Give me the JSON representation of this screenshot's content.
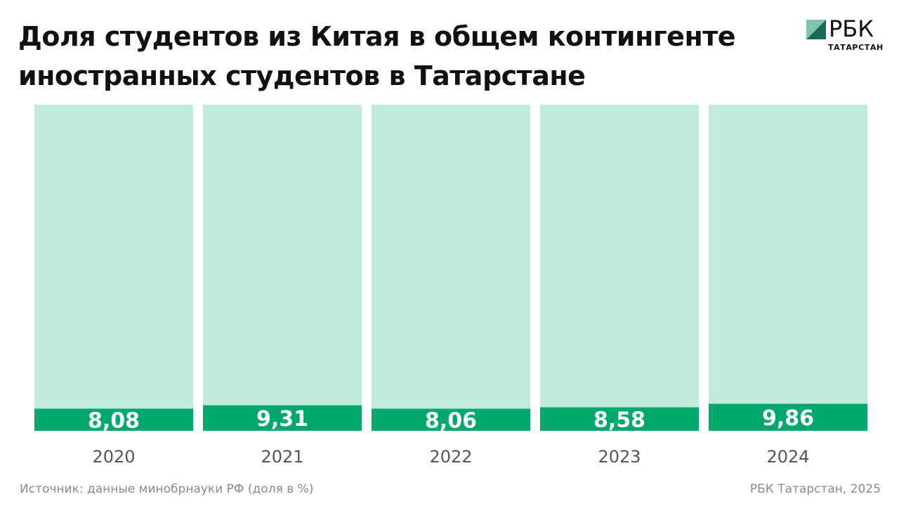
{
  "title_lines": [
    "Доля студентов из Китая в общем контингенте",
    "иностранных студентов в Татарстане"
  ],
  "logo": {
    "word": "РБК",
    "sub": "ТАТАРСТАН"
  },
  "colors": {
    "bar_fill": "#00a86b",
    "bar_bg": "#c0eadb",
    "label_text": "#ffffff",
    "axis_text": "#555555"
  },
  "chart_data": {
    "type": "bar",
    "categories": [
      "2020",
      "2021",
      "2022",
      "2023",
      "2024"
    ],
    "values": [
      8.08,
      9.31,
      8.06,
      8.58,
      9.86
    ],
    "value_labels": [
      "8,08",
      "9,31",
      "8,06",
      "8,58",
      "9,86"
    ],
    "ylabel": "",
    "xlabel": ""
  },
  "footer": {
    "source": "Источник: данные минобрнауки РФ (доля в %)",
    "credit": "РБК Татарстан, 2025"
  }
}
